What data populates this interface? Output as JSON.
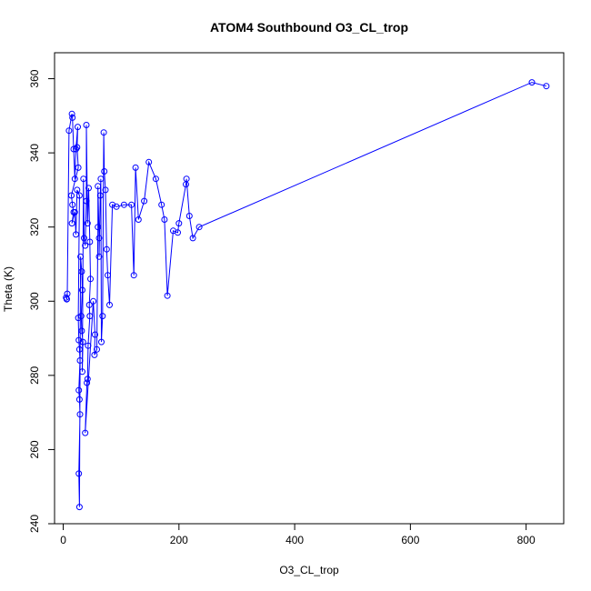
{
  "chart_data": {
    "type": "line",
    "title": "ATOM4 Southbound O3_CL_trop",
    "xlabel": "O3_CL_trop",
    "ylabel": "Theta (K)",
    "xlim": [
      -15,
      865
    ],
    "ylim": [
      240,
      367
    ],
    "xticks": [
      0,
      200,
      400,
      600,
      800
    ],
    "yticks": [
      240,
      260,
      280,
      300,
      320,
      340,
      360
    ],
    "series_color": "#0000ff",
    "marker": "open-circle",
    "grid": false,
    "legend": "none",
    "series": [
      {
        "values": [
          [
            5,
            301
          ],
          [
            6,
            300.6
          ],
          [
            6,
            300.5
          ],
          [
            7,
            302
          ],
          [
            10,
            346
          ],
          [
            15,
            350.5
          ],
          [
            16,
            349.5
          ],
          [
            18,
            341
          ],
          [
            20,
            333
          ],
          [
            22,
            341
          ],
          [
            25,
            347
          ],
          [
            24,
            341.5
          ],
          [
            26,
            336
          ],
          [
            14,
            328.5
          ],
          [
            16,
            326
          ],
          [
            18,
            324
          ],
          [
            15,
            321
          ],
          [
            20,
            324
          ],
          [
            22,
            318
          ],
          [
            24,
            330
          ],
          [
            28,
            328.5
          ],
          [
            26,
            295.5
          ],
          [
            27,
            289.5
          ],
          [
            28,
            287
          ],
          [
            29,
            284
          ],
          [
            27,
            276
          ],
          [
            28,
            273.5
          ],
          [
            29,
            269.5
          ],
          [
            27,
            253.5
          ],
          [
            28,
            244.5
          ],
          [
            30,
            312
          ],
          [
            32,
            308
          ],
          [
            33,
            303
          ],
          [
            31,
            296
          ],
          [
            32,
            292
          ],
          [
            34,
            289
          ],
          [
            33,
            281
          ],
          [
            35,
            333
          ],
          [
            36,
            317
          ],
          [
            38,
            315
          ],
          [
            40,
            327
          ],
          [
            40,
            347.5
          ],
          [
            42,
            321
          ],
          [
            44,
            330.5
          ],
          [
            46,
            316
          ],
          [
            47,
            306
          ],
          [
            45,
            299
          ],
          [
            46,
            296
          ],
          [
            43,
            288
          ],
          [
            42,
            279
          ],
          [
            41,
            278
          ],
          [
            38,
            264.5
          ],
          [
            52,
            300
          ],
          [
            55,
            291
          ],
          [
            54,
            285.5
          ],
          [
            58,
            287
          ],
          [
            60,
            320
          ],
          [
            60,
            331
          ],
          [
            62,
            317
          ],
          [
            62,
            312
          ],
          [
            64,
            328.5
          ],
          [
            65,
            333
          ],
          [
            66,
            289
          ],
          [
            68,
            296
          ],
          [
            70,
            345.5
          ],
          [
            71,
            335
          ],
          [
            73,
            330
          ],
          [
            75,
            314
          ],
          [
            77,
            307
          ],
          [
            80,
            299
          ],
          [
            85,
            326
          ],
          [
            92,
            325.5
          ],
          [
            105,
            326
          ],
          [
            118,
            326
          ],
          [
            122,
            307
          ],
          [
            125,
            336
          ],
          [
            130,
            322
          ],
          [
            140,
            327
          ],
          [
            148,
            337.5
          ],
          [
            160,
            333
          ],
          [
            170,
            326
          ],
          [
            175,
            322
          ],
          [
            180,
            301.5
          ],
          [
            190,
            319
          ],
          [
            198,
            318.5
          ],
          [
            200,
            321
          ],
          [
            212,
            331.5
          ],
          [
            213,
            333
          ],
          [
            218,
            323
          ],
          [
            224,
            317
          ],
          [
            235,
            320
          ],
          [
            810,
            359
          ],
          [
            835,
            358
          ]
        ]
      }
    ]
  }
}
